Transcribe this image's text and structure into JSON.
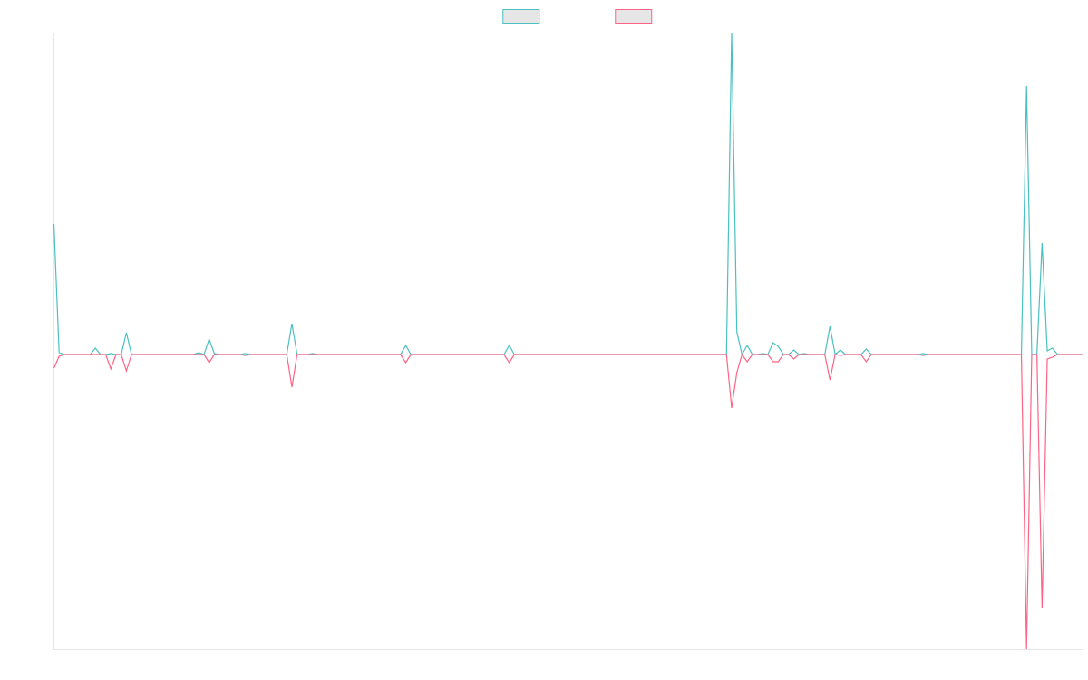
{
  "chart_data": {
    "type": "line",
    "legend": "top",
    "ylim": [
      -325,
      355
    ],
    "series": [
      {
        "color": "#4bc0c0",
        "values": [
          144,
          2,
          0,
          0,
          0,
          0,
          0,
          0,
          7,
          0,
          0,
          1,
          0,
          0,
          24,
          0,
          0,
          0,
          0,
          0,
          0,
          0,
          0,
          0,
          0,
          0,
          0,
          0,
          2,
          0,
          17,
          1,
          0,
          0,
          0,
          0,
          0,
          1,
          0,
          0,
          0,
          0,
          0,
          0,
          0,
          0,
          34,
          0,
          0,
          0,
          1,
          0,
          0,
          0,
          0,
          0,
          0,
          0,
          0,
          0,
          0,
          0,
          0,
          0,
          0,
          0,
          0,
          0,
          10,
          0,
          0,
          0,
          0,
          0,
          0,
          0,
          0,
          0,
          0,
          0,
          0,
          0,
          0,
          0,
          0,
          0,
          0,
          0,
          10,
          0,
          0,
          0,
          0,
          0,
          0,
          0,
          0,
          0,
          0,
          0,
          0,
          0,
          0,
          0,
          0,
          0,
          0,
          0,
          0,
          0,
          0,
          0,
          0,
          0,
          0,
          0,
          0,
          0,
          0,
          0,
          0,
          0,
          0,
          0,
          0,
          0,
          0,
          0,
          0,
          0,
          0,
          355,
          25,
          0,
          10,
          0,
          0,
          1,
          0,
          13,
          9,
          0,
          0,
          5,
          0,
          1,
          0,
          0,
          0,
          0,
          31,
          0,
          5,
          0,
          0,
          0,
          0,
          6,
          0,
          0,
          0,
          0,
          0,
          0,
          0,
          0,
          0,
          0,
          1,
          0,
          0,
          0,
          0,
          0,
          0,
          0,
          0,
          0,
          0,
          0,
          0,
          0,
          0,
          0,
          0,
          0,
          0,
          0,
          296,
          0,
          0,
          123,
          4,
          7,
          0,
          0,
          0,
          0,
          0,
          0
        ]
      },
      {
        "color": "#ff6384",
        "values": [
          -15,
          -2,
          0,
          0,
          0,
          0,
          0,
          0,
          0,
          0,
          0,
          -16,
          0,
          0,
          -18,
          0,
          0,
          0,
          0,
          0,
          0,
          0,
          0,
          0,
          0,
          0,
          0,
          0,
          0,
          0,
          -9,
          0,
          0,
          0,
          0,
          0,
          0,
          -1,
          0,
          0,
          0,
          0,
          0,
          0,
          0,
          0,
          -36,
          0,
          0,
          0,
          0,
          0,
          0,
          0,
          0,
          0,
          0,
          0,
          0,
          0,
          0,
          0,
          0,
          0,
          0,
          0,
          0,
          0,
          -9,
          0,
          0,
          0,
          0,
          0,
          0,
          0,
          0,
          0,
          0,
          0,
          0,
          0,
          0,
          0,
          0,
          0,
          0,
          0,
          -9,
          0,
          0,
          0,
          0,
          0,
          0,
          0,
          0,
          0,
          0,
          0,
          0,
          0,
          0,
          0,
          0,
          0,
          0,
          0,
          0,
          0,
          0,
          0,
          0,
          0,
          0,
          0,
          0,
          0,
          0,
          0,
          0,
          0,
          0,
          0,
          0,
          0,
          0,
          0,
          0,
          0,
          0,
          -59,
          -20,
          0,
          -8,
          0,
          0,
          0,
          0,
          -8,
          -8,
          0,
          0,
          -5,
          0,
          0,
          0,
          0,
          0,
          0,
          -28,
          0,
          -1,
          0,
          0,
          0,
          0,
          -8,
          0,
          0,
          0,
          0,
          0,
          0,
          0,
          0,
          0,
          0,
          -1,
          0,
          0,
          0,
          0,
          0,
          0,
          0,
          0,
          0,
          0,
          0,
          0,
          0,
          0,
          0,
          0,
          0,
          0,
          0,
          -325,
          0,
          0,
          -280,
          -5,
          -3,
          0,
          0,
          0,
          0,
          0,
          0
        ]
      }
    ]
  }
}
